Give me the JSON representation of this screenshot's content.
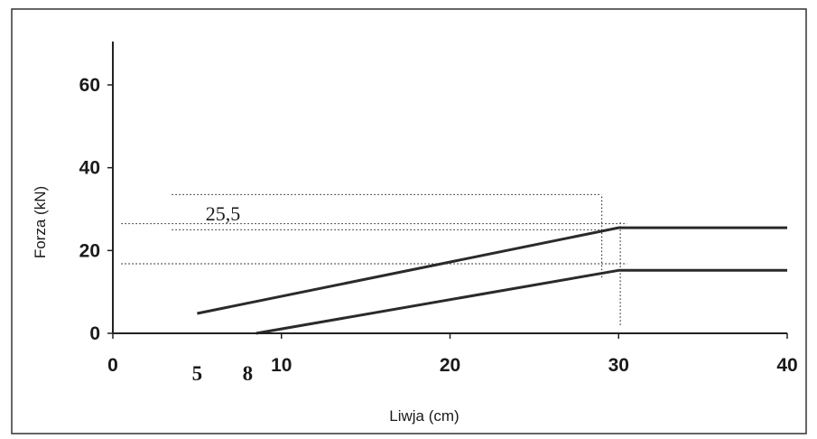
{
  "chart_data": {
    "type": "line",
    "xlabel": "Liwja (cm)",
    "ylabel": "Forza (kN)",
    "xlim": [
      0,
      40
    ],
    "ylim": [
      0,
      70
    ],
    "x_ticks": [
      0,
      10,
      20,
      30,
      40
    ],
    "y_ticks": [
      0,
      20,
      40,
      60
    ],
    "extra_x_labels": [
      {
        "x": 5,
        "label": "5"
      },
      {
        "x": 8,
        "label": "8"
      }
    ],
    "grid": false,
    "series": [
      {
        "points": [
          [
            5,
            4.8
          ],
          [
            30,
            25.5
          ],
          [
            40,
            25.5
          ]
        ]
      },
      {
        "points": [
          [
            8.5,
            0
          ],
          [
            30,
            15.2
          ],
          [
            40,
            15.2
          ]
        ]
      }
    ],
    "reference_lines": [
      {
        "type": "horizontal",
        "y": 33.5,
        "x_from": 3.5,
        "x_to": 29
      },
      {
        "type": "horizontal",
        "y": 26.5,
        "x_from": 0.5,
        "x_to": 30.5
      },
      {
        "type": "horizontal",
        "y": 25.0,
        "x_from": 3.5,
        "x_to": 29
      },
      {
        "type": "horizontal",
        "y": 16.8,
        "x_from": 0.5,
        "x_to": 30.5
      },
      {
        "type": "vertical",
        "x": 29,
        "y_from": 13.5,
        "y_to": 33.5
      },
      {
        "type": "vertical",
        "x": 30.1,
        "y_from": 2,
        "y_to": 27
      }
    ],
    "annotations": [
      {
        "text": "25,5",
        "x": 5.5,
        "y": 27.3
      }
    ]
  }
}
